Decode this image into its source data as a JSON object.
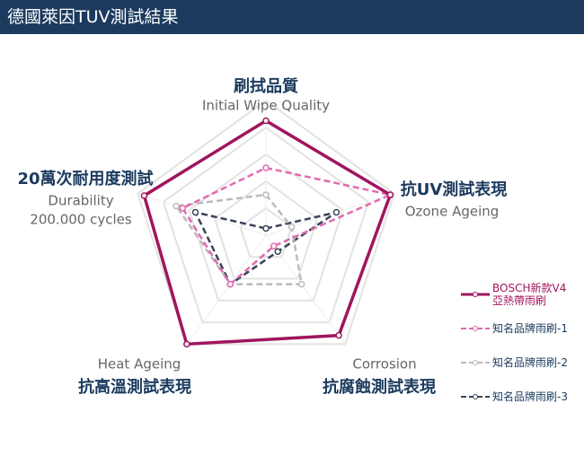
{
  "header": {
    "title": "德國萊因TUV測試結果"
  },
  "chart_data": {
    "type": "radar",
    "axes": [
      {
        "name": "刷拭品質",
        "sub": [
          "Initial Wipe Quality"
        ]
      },
      {
        "name": "抗UV測試表現",
        "sub": [
          "Ozone Ageing"
        ]
      },
      {
        "name": "抗腐蝕測試表現",
        "sub": [
          "Corrosion"
        ]
      },
      {
        "name": "抗高溫測試表現",
        "sub": [
          "Heat Ageing"
        ]
      },
      {
        "name": "20萬次耐用度測試",
        "sub": [
          "Durability",
          "200.000 cycles"
        ]
      }
    ],
    "rlim": [
      0,
      100
    ],
    "rticks": [
      20,
      40,
      60,
      80,
      100
    ],
    "grid": true,
    "series": [
      {
        "name": "BOSCH新款V4\n亞熱帶雨刷",
        "color": "#a0155f",
        "dashed": false,
        "values": [
          85,
          97,
          92,
          100,
          95
        ]
      },
      {
        "name": "知名品牌雨刷-1",
        "color": "#e06ab0",
        "dashed": true,
        "values": [
          50,
          97,
          10,
          45,
          65
        ]
      },
      {
        "name": "知名品牌雨刷-2",
        "color": "#bbbbbb",
        "dashed": true,
        "values": [
          30,
          20,
          45,
          45,
          70
        ]
      },
      {
        "name": "知名品牌雨刷-3",
        "color": "#3a4458",
        "dashed": true,
        "values": [
          5,
          55,
          15,
          45,
          55
        ]
      }
    ]
  }
}
